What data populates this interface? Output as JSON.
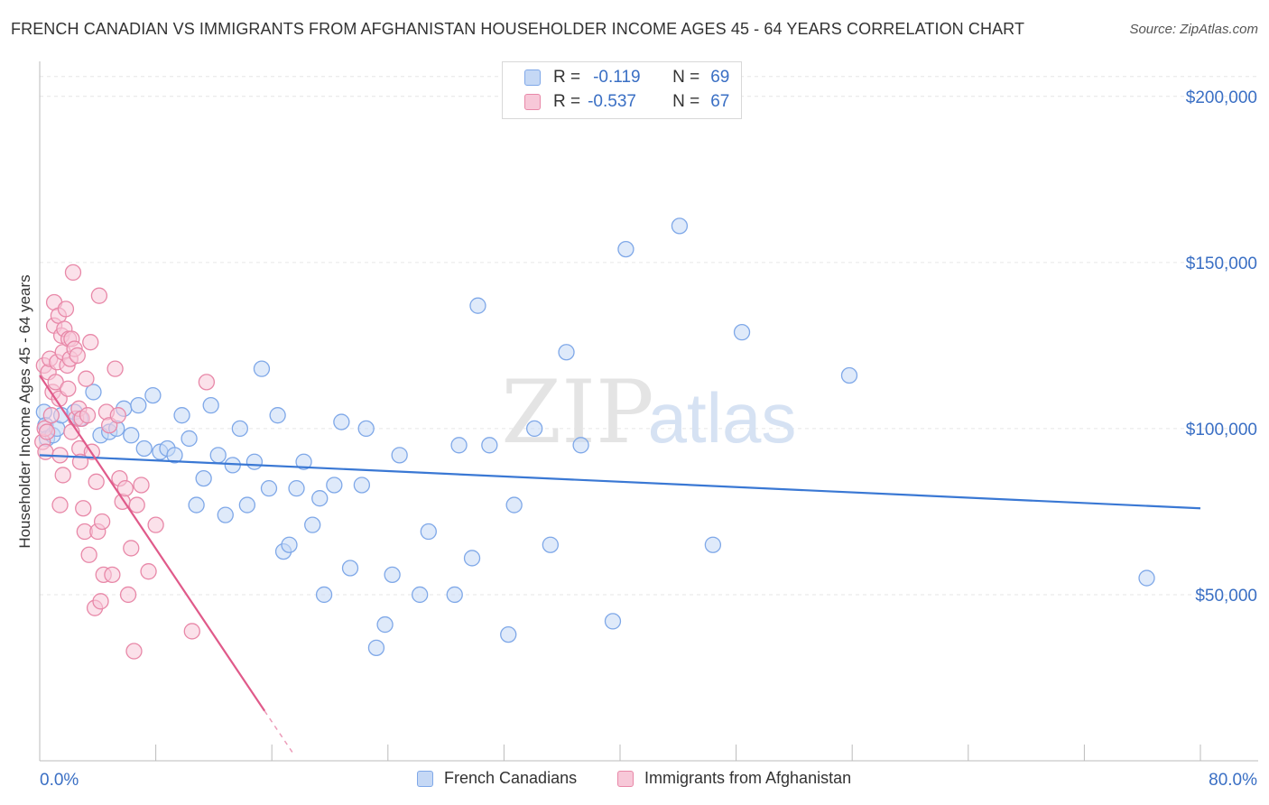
{
  "title": "FRENCH CANADIAN VS IMMIGRANTS FROM AFGHANISTAN HOUSEHOLDER INCOME AGES 45 - 64 YEARS CORRELATION CHART",
  "source": "Source: ZipAtlas.com",
  "watermark": "ZIPatlas",
  "legend": {
    "rows": [
      {
        "r_label": "R =",
        "r_value": "-0.119",
        "n_label": "N =",
        "n_value": "69",
        "color": "#7fa8e8",
        "fill": "#c5d8f5"
      },
      {
        "r_label": "R =",
        "r_value": "-0.537",
        "n_label": "N =",
        "n_value": "67",
        "color": "#e888a8",
        "fill": "#f7c8d8"
      }
    ]
  },
  "bottom_legend": [
    "French Canadians",
    "Immigrants from Afghanistan"
  ],
  "chart_data": {
    "type": "scatter",
    "ylabel": "Householder Income Ages 45 - 64 years",
    "x_tick_labels": [
      "0.0%",
      "80.0%"
    ],
    "y_tick_labels": [
      "$50,000",
      "$100,000",
      "$150,000",
      "$200,000"
    ],
    "y_ticks": [
      50000,
      100000,
      150000,
      200000
    ],
    "xlim": [
      0,
      80
    ],
    "ylim": [
      0,
      210000
    ],
    "grid": true,
    "series": [
      {
        "name": "French Canadians",
        "color": "#3a78d4",
        "fill": "#c5d8f5",
        "stroke": "#7fa8e8",
        "points": [
          [
            0.3,
            105000
          ],
          [
            0.4,
            101000
          ],
          [
            0.5,
            97000
          ],
          [
            0.9,
            98000
          ],
          [
            1.2,
            100000
          ],
          [
            1.5,
            104000
          ],
          [
            2.4,
            105000
          ],
          [
            2.8,
            103000
          ],
          [
            3.7,
            111000
          ],
          [
            4.2,
            98000
          ],
          [
            4.8,
            99000
          ],
          [
            5.3,
            100000
          ],
          [
            5.8,
            106000
          ],
          [
            6.3,
            98000
          ],
          [
            6.8,
            107000
          ],
          [
            7.2,
            94000
          ],
          [
            7.8,
            110000
          ],
          [
            8.3,
            93000
          ],
          [
            8.8,
            94000
          ],
          [
            9.3,
            92000
          ],
          [
            9.8,
            104000
          ],
          [
            10.3,
            97000
          ],
          [
            10.8,
            77000
          ],
          [
            11.3,
            85000
          ],
          [
            11.8,
            107000
          ],
          [
            12.3,
            92000
          ],
          [
            12.8,
            74000
          ],
          [
            13.3,
            89000
          ],
          [
            13.8,
            100000
          ],
          [
            14.3,
            77000
          ],
          [
            14.8,
            90000
          ],
          [
            15.3,
            118000
          ],
          [
            15.8,
            82000
          ],
          [
            16.4,
            104000
          ],
          [
            16.8,
            63000
          ],
          [
            17.2,
            65000
          ],
          [
            17.7,
            82000
          ],
          [
            18.2,
            90000
          ],
          [
            18.8,
            71000
          ],
          [
            19.3,
            79000
          ],
          [
            19.6,
            50000
          ],
          [
            20.3,
            83000
          ],
          [
            20.8,
            102000
          ],
          [
            21.4,
            58000
          ],
          [
            22.2,
            83000
          ],
          [
            22.5,
            100000
          ],
          [
            23.2,
            34000
          ],
          [
            23.8,
            41000
          ],
          [
            24.3,
            56000
          ],
          [
            24.8,
            92000
          ],
          [
            26.2,
            50000
          ],
          [
            26.8,
            69000
          ],
          [
            28.6,
            50000
          ],
          [
            28.9,
            95000
          ],
          [
            29.8,
            61000
          ],
          [
            30.2,
            137000
          ],
          [
            31.0,
            95000
          ],
          [
            32.3,
            38000
          ],
          [
            32.7,
            77000
          ],
          [
            34.1,
            100000
          ],
          [
            35.2,
            65000
          ],
          [
            36.3,
            123000
          ],
          [
            37.3,
            95000
          ],
          [
            39.5,
            42000
          ],
          [
            40.4,
            154000
          ],
          [
            44.1,
            161000
          ],
          [
            46.4,
            65000
          ],
          [
            48.4,
            129000
          ],
          [
            55.8,
            116000
          ],
          [
            76.3,
            55000
          ]
        ],
        "trend": {
          "x": [
            0,
            80
          ],
          "y": [
            92000,
            76000
          ]
        }
      },
      {
        "name": "Immigrants from Afghanistan",
        "color": "#e05a8a",
        "fill": "#f7c8d8",
        "stroke": "#e888a8",
        "points": [
          [
            0.2,
            96000
          ],
          [
            0.3,
            119000
          ],
          [
            0.35,
            100000
          ],
          [
            0.4,
            93000
          ],
          [
            0.5,
            99000
          ],
          [
            0.6,
            117000
          ],
          [
            0.7,
            121000
          ],
          [
            0.8,
            104000
          ],
          [
            0.9,
            111000
          ],
          [
            1.0,
            131000
          ],
          [
            1.0,
            138000
          ],
          [
            1.1,
            114000
          ],
          [
            1.2,
            120000
          ],
          [
            1.3,
            134000
          ],
          [
            1.35,
            109000
          ],
          [
            1.4,
            92000
          ],
          [
            1.5,
            128000
          ],
          [
            1.6,
            123000
          ],
          [
            1.6,
            86000
          ],
          [
            1.7,
            130000
          ],
          [
            1.8,
            136000
          ],
          [
            1.9,
            119000
          ],
          [
            1.95,
            112000
          ],
          [
            2.0,
            127000
          ],
          [
            2.1,
            121000
          ],
          [
            2.2,
            127000
          ],
          [
            2.3,
            147000
          ],
          [
            2.4,
            124000
          ],
          [
            2.5,
            103000
          ],
          [
            2.6,
            122000
          ],
          [
            2.7,
            106000
          ],
          [
            2.75,
            94000
          ],
          [
            2.8,
            90000
          ],
          [
            2.9,
            103000
          ],
          [
            3.0,
            76000
          ],
          [
            3.1,
            69000
          ],
          [
            3.2,
            115000
          ],
          [
            3.3,
            104000
          ],
          [
            3.4,
            62000
          ],
          [
            3.5,
            126000
          ],
          [
            3.6,
            93000
          ],
          [
            3.8,
            46000
          ],
          [
            3.9,
            84000
          ],
          [
            4.0,
            69000
          ],
          [
            4.1,
            140000
          ],
          [
            4.2,
            48000
          ],
          [
            4.3,
            72000
          ],
          [
            4.4,
            56000
          ],
          [
            4.6,
            105000
          ],
          [
            4.8,
            101000
          ],
          [
            5.0,
            56000
          ],
          [
            5.2,
            118000
          ],
          [
            5.4,
            104000
          ],
          [
            5.5,
            85000
          ],
          [
            5.7,
            78000
          ],
          [
            5.9,
            82000
          ],
          [
            6.1,
            50000
          ],
          [
            6.3,
            64000
          ],
          [
            6.5,
            33000
          ],
          [
            6.7,
            77000
          ],
          [
            7.0,
            83000
          ],
          [
            7.5,
            57000
          ],
          [
            8.0,
            71000
          ],
          [
            10.5,
            39000
          ],
          [
            11.5,
            114000
          ],
          [
            1.4,
            77000
          ],
          [
            2.2,
            99000
          ]
        ],
        "trend": {
          "x": [
            0,
            15.5
          ],
          "y": [
            116000,
            15000
          ]
        },
        "trend_dashed": {
          "x": [
            15.5,
            17.5
          ],
          "y": [
            15000,
            2000
          ]
        }
      }
    ]
  }
}
